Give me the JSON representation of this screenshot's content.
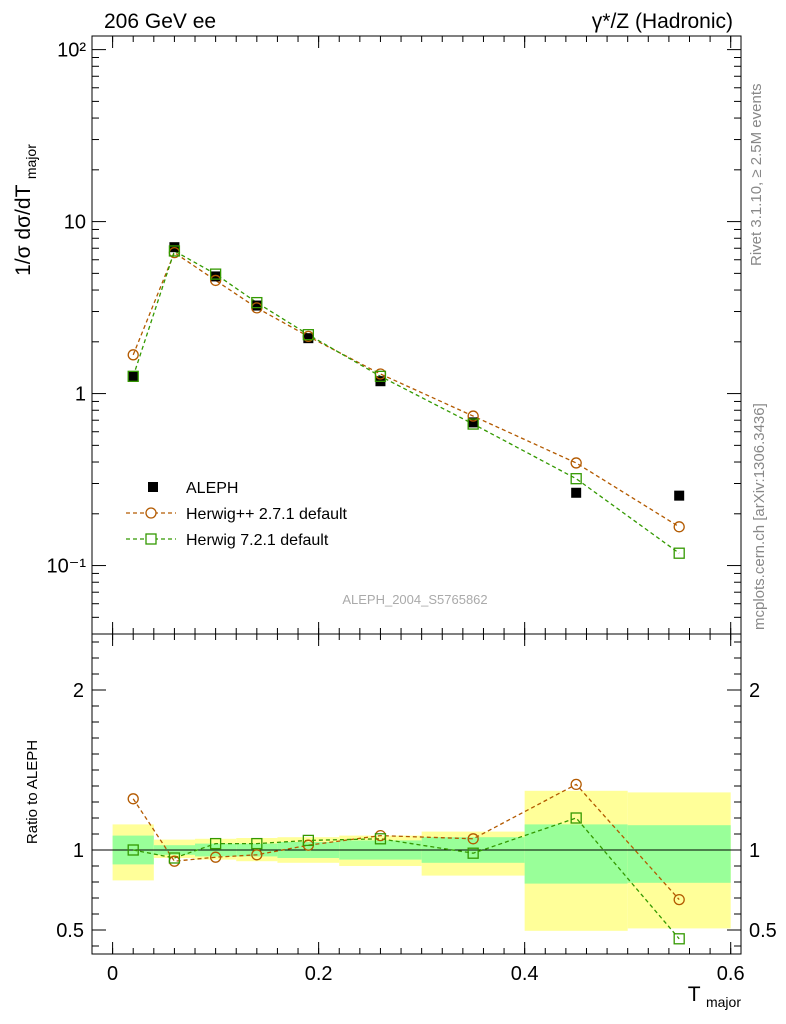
{
  "header": {
    "left": "206 GeV ee",
    "right": "γ*/Z (Hadronic)"
  },
  "side": {
    "rivet": "Rivet 3.1.10, ≥ 2.5M events",
    "mcplots": "mcplots.cern.ch [arXiv:1306.3436]"
  },
  "watermark": "ALEPH_2004_S5765862",
  "colors": {
    "data": "#000000",
    "herwigpp": "#b35a00",
    "herwig7": "#339900",
    "band_outer": "#ffff99",
    "band_inner": "#99ff99"
  },
  "chart_data": [
    {
      "type": "scatter",
      "title": "",
      "ylabel": "1/σ dσ/dT_major",
      "xlabel": "",
      "yscale": "log",
      "ylim": [
        0.04,
        120
      ],
      "xlim": [
        -0.02,
        0.61
      ],
      "yticks": [
        {
          "value": 0.1,
          "label": "10⁻¹"
        },
        {
          "value": 1,
          "label": "1"
        },
        {
          "value": 10,
          "label": "10"
        },
        {
          "value": 100,
          "label": "10²"
        }
      ],
      "legend_position": "bottom-left",
      "bins": [
        [
          0.0,
          0.04
        ],
        [
          0.04,
          0.08
        ],
        [
          0.08,
          0.12
        ],
        [
          0.12,
          0.16
        ],
        [
          0.16,
          0.22
        ],
        [
          0.22,
          0.3
        ],
        [
          0.3,
          0.4
        ],
        [
          0.4,
          0.5
        ],
        [
          0.5,
          0.6
        ]
      ],
      "x": [
        0.02,
        0.06,
        0.1,
        0.14,
        0.19,
        0.26,
        0.35,
        0.45,
        0.55
      ],
      "series": [
        {
          "name": "ALEPH",
          "marker": "filled-square",
          "values": [
            1.25,
            7.1,
            4.8,
            3.25,
            2.1,
            1.18,
            0.68,
            0.265,
            0.255
          ]
        },
        {
          "name": "Herwig++ 2.7.1 default",
          "marker": "open-circle",
          "values": [
            1.68,
            6.6,
            4.55,
            3.15,
            2.15,
            1.3,
            0.74,
            0.395,
            0.168
          ]
        },
        {
          "name": "Herwig 7.2.1 default",
          "marker": "open-square",
          "values": [
            1.26,
            6.75,
            4.95,
            3.38,
            2.2,
            1.26,
            0.665,
            0.32,
            0.118
          ]
        }
      ]
    },
    {
      "type": "scatter",
      "title": "",
      "ylabel": "Ratio to ALEPH",
      "xlabel": "T_major",
      "ylim": [
        0.35,
        2.35
      ],
      "xlim": [
        -0.02,
        0.61
      ],
      "yticks": [
        0.5,
        1,
        2
      ],
      "xticks": [
        0,
        0.2,
        0.4,
        0.6
      ],
      "bins": [
        [
          0.0,
          0.04
        ],
        [
          0.04,
          0.08
        ],
        [
          0.08,
          0.12
        ],
        [
          0.12,
          0.16
        ],
        [
          0.16,
          0.22
        ],
        [
          0.22,
          0.3
        ],
        [
          0.3,
          0.4
        ],
        [
          0.4,
          0.5
        ],
        [
          0.5,
          0.6
        ]
      ],
      "x": [
        0.02,
        0.06,
        0.1,
        0.14,
        0.19,
        0.26,
        0.35,
        0.45,
        0.55
      ],
      "band_inner": [
        [
          0.91,
          1.09
        ],
        [
          0.97,
          1.03
        ],
        [
          0.96,
          1.04
        ],
        [
          0.96,
          1.04
        ],
        [
          0.95,
          1.05
        ],
        [
          0.94,
          1.06
        ],
        [
          0.92,
          1.08
        ],
        [
          0.79,
          1.16
        ],
        [
          0.795,
          1.155
        ]
      ],
      "band_outer": [
        [
          0.81,
          1.16
        ],
        [
          0.95,
          1.065
        ],
        [
          0.94,
          1.07
        ],
        [
          0.93,
          1.075
        ],
        [
          0.92,
          1.08
        ],
        [
          0.9,
          1.09
        ],
        [
          0.84,
          1.115
        ],
        [
          0.495,
          1.37
        ],
        [
          0.51,
          1.36
        ]
      ],
      "series": [
        {
          "name": "Herwig++ 2.7.1 default",
          "values": [
            1.32,
            0.93,
            0.955,
            0.97,
            1.03,
            1.09,
            1.07,
            1.41,
            0.69
          ]
        },
        {
          "name": "Herwig 7.2.1 default",
          "values": [
            1.0,
            0.95,
            1.04,
            1.04,
            1.06,
            1.07,
            0.98,
            1.2,
            0.445
          ]
        }
      ]
    }
  ]
}
